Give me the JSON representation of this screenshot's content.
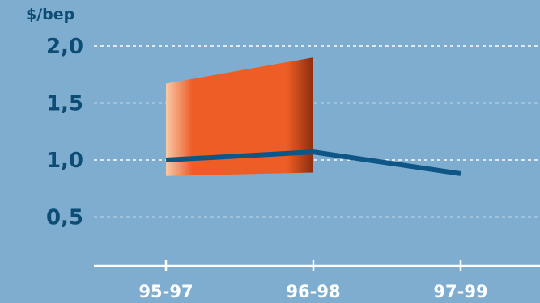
{
  "chart_data": {
    "type": "line",
    "unit_label": "$/bep",
    "categories": [
      "95-97",
      "96-98",
      "97-99"
    ],
    "ylim": [
      0.2,
      2.0
    ],
    "yticks": [
      "0,5",
      "1,0",
      "1,5",
      "2,0"
    ],
    "ytick_values": [
      0.5,
      1.0,
      1.5,
      2.0
    ],
    "grid": true,
    "series": [
      {
        "type": "band",
        "x_categories": [
          "95-97",
          "96-98"
        ],
        "upper": [
          1.67,
          1.9
        ],
        "lower": [
          0.86,
          0.89
        ]
      },
      {
        "type": "line",
        "values": [
          1.0,
          1.07,
          0.88
        ]
      }
    ],
    "colors": {
      "background": "#7eadd0",
      "band": "#ee5d25",
      "band_light": "#f9c9a8",
      "band_dark": "#8b2d0d",
      "line": "#0e5685",
      "grid": "#ffffff",
      "axis": "#ffffff",
      "ytick_text": "#0d4c74",
      "xtick_text": "#ffffff"
    }
  }
}
